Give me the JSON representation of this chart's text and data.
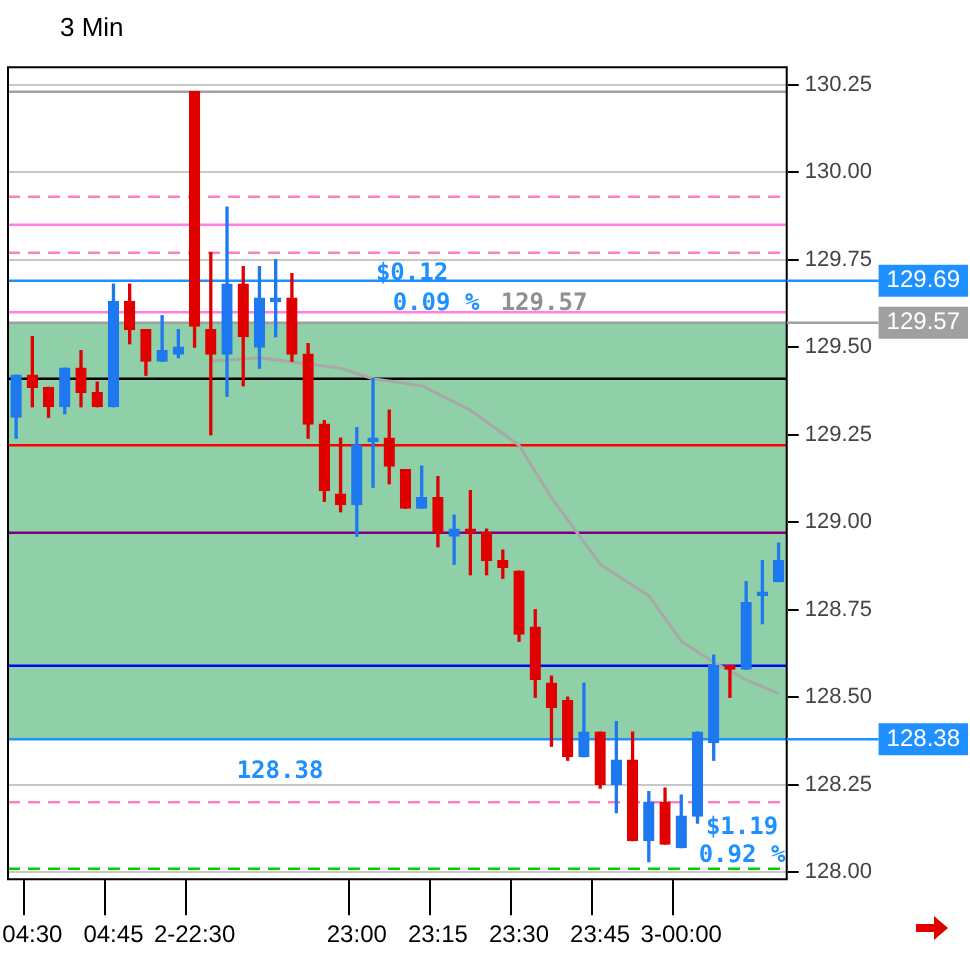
{
  "chart_data": {
    "type": "candlestick",
    "title": "3 Min",
    "categories": [
      null,
      "04:30",
      null,
      null,
      null,
      null,
      "04:45",
      null,
      null,
      null,
      null,
      "2-22:30",
      null,
      null,
      null,
      null,
      null,
      null,
      null,
      null,
      null,
      "23:00",
      null,
      null,
      null,
      null,
      "23:15",
      null,
      null,
      null,
      null,
      "23:30",
      null,
      null,
      null,
      null,
      "23:45",
      null,
      null,
      null,
      null,
      "3-00:00",
      null,
      null,
      null,
      null,
      null,
      null
    ],
    "ohlc": [
      [
        129.3,
        129.42,
        129.24,
        129.42
      ],
      [
        129.42,
        129.53,
        129.33,
        129.385
      ],
      [
        129.385,
        129.385,
        129.3,
        129.33
      ],
      [
        129.33,
        129.44,
        129.31,
        129.44
      ],
      [
        129.44,
        129.49,
        129.33,
        129.37
      ],
      [
        129.37,
        129.4,
        129.33,
        129.33
      ],
      [
        129.33,
        129.68,
        129.33,
        129.63
      ],
      [
        129.63,
        129.68,
        129.51,
        129.55
      ],
      [
        129.55,
        129.55,
        129.42,
        129.46
      ],
      [
        129.46,
        129.59,
        129.46,
        129.49
      ],
      [
        129.48,
        129.55,
        129.47,
        129.5
      ],
      [
        130.23,
        130.23,
        129.5,
        129.56
      ],
      [
        129.55,
        129.77,
        129.25,
        129.48
      ],
      [
        129.48,
        129.9,
        129.36,
        129.68
      ],
      [
        129.68,
        129.73,
        129.39,
        129.53
      ],
      [
        129.5,
        129.73,
        129.44,
        129.64
      ],
      [
        129.63,
        129.75,
        129.53,
        129.64
      ],
      [
        129.64,
        129.71,
        129.46,
        129.48
      ],
      [
        129.48,
        129.51,
        129.24,
        129.28
      ],
      [
        129.28,
        129.29,
        129.06,
        129.09
      ],
      [
        129.08,
        129.24,
        129.03,
        129.05
      ],
      [
        129.05,
        129.27,
        128.96,
        129.22
      ],
      [
        129.23,
        129.41,
        129.1,
        129.24
      ],
      [
        129.24,
        129.32,
        129.11,
        129.16
      ],
      [
        129.15,
        129.15,
        129.04,
        129.04
      ],
      [
        129.04,
        129.16,
        129.04,
        129.07
      ],
      [
        129.07,
        129.13,
        128.93,
        128.97
      ],
      [
        128.96,
        129.02,
        128.88,
        128.98
      ],
      [
        128.98,
        129.09,
        128.85,
        128.97
      ],
      [
        128.97,
        128.98,
        128.85,
        128.89
      ],
      [
        128.89,
        128.92,
        128.84,
        128.87
      ],
      [
        128.86,
        128.86,
        128.66,
        128.68
      ],
      [
        128.7,
        128.75,
        128.5,
        128.55
      ],
      [
        128.54,
        128.56,
        128.36,
        128.47
      ],
      [
        128.49,
        128.5,
        128.32,
        128.33
      ],
      [
        128.33,
        128.54,
        128.33,
        128.4
      ],
      [
        128.4,
        128.4,
        128.24,
        128.25
      ],
      [
        128.25,
        128.43,
        128.17,
        128.32
      ],
      [
        128.32,
        128.4,
        128.09,
        128.09
      ],
      [
        128.09,
        128.23,
        128.03,
        128.2
      ],
      [
        128.2,
        128.24,
        128.08,
        128.08
      ],
      [
        128.07,
        128.22,
        128.07,
        128.16
      ],
      [
        128.16,
        128.4,
        128.14,
        128.4
      ],
      [
        128.37,
        128.62,
        128.32,
        128.59
      ],
      [
        128.59,
        128.59,
        128.5,
        128.58
      ],
      [
        128.58,
        128.83,
        128.58,
        128.77
      ],
      [
        128.79,
        128.89,
        128.71,
        128.8
      ],
      [
        128.83,
        128.94,
        128.83,
        128.89
      ]
    ],
    "colors": [
      "#1e78f0",
      "#e00000",
      "#e00000",
      "#1e78f0",
      "#e00000",
      "#e00000",
      "#1e78f0",
      "#e00000",
      "#e00000",
      "#1e78f0",
      "#1e78f0",
      "#e00000",
      "#e00000",
      "#1e78f0",
      "#e00000",
      "#1e78f0",
      "#1e78f0",
      "#e00000",
      "#e00000",
      "#e00000",
      "#e00000",
      "#1e78f0",
      "#1e78f0",
      "#e00000",
      "#e00000",
      "#1e78f0",
      "#e00000",
      "#1e78f0",
      "#e00000",
      "#e00000",
      "#e00000",
      "#e00000",
      "#e00000",
      "#e00000",
      "#e00000",
      "#1e78f0",
      "#e00000",
      "#1e78f0",
      "#e00000",
      "#1e78f0",
      "#e00000",
      "#1e78f0",
      "#1e78f0",
      "#1e78f0",
      "#e00000",
      "#1e78f0",
      "#1e78f0",
      "#1e78f0"
    ],
    "series": [
      {
        "type": "line",
        "color": "#a8a8a8",
        "values": [
          null,
          null,
          null,
          null,
          null,
          null,
          null,
          null,
          null,
          null,
          null,
          null,
          129.46,
          null,
          null,
          129.47,
          null,
          null,
          null,
          null,
          129.44,
          null,
          129.41,
          null,
          null,
          129.39,
          null,
          null,
          129.32,
          null,
          null,
          129.22,
          null,
          129.07,
          null,
          null,
          128.88,
          null,
          null,
          128.79,
          null,
          128.66,
          null,
          128.6,
          null,
          128.55,
          null,
          128.51
        ]
      }
    ],
    "ylim": [
      127.98,
      130.3
    ],
    "yticks": [
      {
        "value": 128,
        "label": "128.00"
      },
      128.25,
      {
        "value": 128.5,
        "label": "128.50"
      },
      128.75,
      {
        "value": 129,
        "label": "129.00"
      },
      129.25,
      {
        "value": 129.5,
        "label": "129.50"
      },
      129.75,
      {
        "value": 130,
        "label": "130.00"
      },
      130.25
    ],
    "grid": true,
    "marker": "none",
    "bands": [
      {
        "axis": "y",
        "from": 128.38,
        "to": 129.57,
        "color": "#8fd0a8"
      }
    ],
    "ref_lines": [
      {
        "axis": "y",
        "value": 130.23,
        "color": "#a0a0a0"
      },
      {
        "axis": "y",
        "value": 129.93,
        "color": "#ff80c0",
        "line_style": "dashed"
      },
      {
        "axis": "y",
        "value": 129.85,
        "color": "#ff80e0"
      },
      {
        "axis": "y",
        "value": 129.77,
        "color": "#ff80c0",
        "line_style": "dashed"
      },
      {
        "axis": "y",
        "value": 129.69,
        "color": "#1e90ff",
        "label": "129.69"
      },
      {
        "axis": "y",
        "value": 129.6,
        "color": "#ff80e0"
      },
      {
        "axis": "y",
        "value": 129.57,
        "color": "#a0a0a0",
        "label": "129.57"
      },
      {
        "axis": "y",
        "value": 129.41,
        "color": "#000000"
      },
      {
        "axis": "y",
        "value": 129.22,
        "color": "#ff0000"
      },
      {
        "axis": "y",
        "value": 128.97,
        "color": "#800080"
      },
      {
        "axis": "y",
        "value": 128.59,
        "color": "#0000ff"
      },
      {
        "axis": "y",
        "value": 128.38,
        "color": "#1e90ff",
        "label": "128.38"
      },
      {
        "axis": "y",
        "value": 128.2,
        "color": "#ff80c0",
        "line_style": "dashed"
      },
      {
        "axis": "y",
        "value": 128.01,
        "color": "#00cc00",
        "line_style": "dashed"
      }
    ],
    "annotations": [
      "$0.12",
      "0.09 %",
      "$1.19",
      "0.92 %",
      "128.38",
      "129.57"
    ]
  }
}
